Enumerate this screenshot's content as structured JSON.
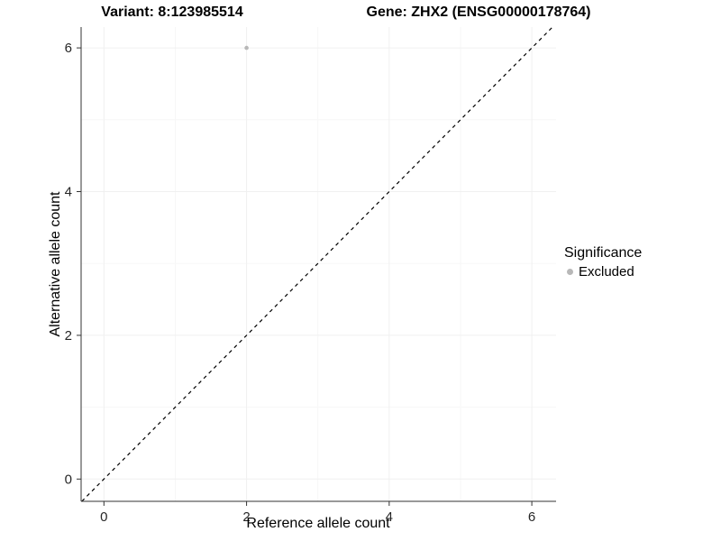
{
  "chart_data": {
    "type": "scatter",
    "title_left": "Variant: 8:123985514",
    "title_right": "Gene: ZHX2 (ENSG00000178764)",
    "xlabel": "Reference allele count",
    "ylabel": "Alternative allele count",
    "xlim": [
      -0.32,
      6.34
    ],
    "ylim": [
      -0.31,
      6.29
    ],
    "xticks": [
      0,
      2,
      4,
      6
    ],
    "yticks": [
      0,
      2,
      4,
      6
    ],
    "xticks_minor": [
      1,
      3,
      5
    ],
    "yticks_minor": [
      1,
      3,
      5
    ],
    "grid": true,
    "grid_major_color": "#f0f0f0",
    "grid_minor_color": "#f7f7f7",
    "axis_color": "#333333",
    "tick_label_color": "#262626",
    "series": [
      {
        "name": "Excluded",
        "color": "#b8b8b8",
        "points": [
          {
            "x": 2,
            "y": 6
          }
        ]
      }
    ],
    "reference_line": {
      "style": "dashed",
      "slope": 1,
      "intercept": 0,
      "color": "#000000"
    },
    "legend": {
      "title": "Significance",
      "position": "right",
      "entries": [
        {
          "label": "Excluded",
          "color": "#b8b8b8"
        }
      ]
    }
  }
}
